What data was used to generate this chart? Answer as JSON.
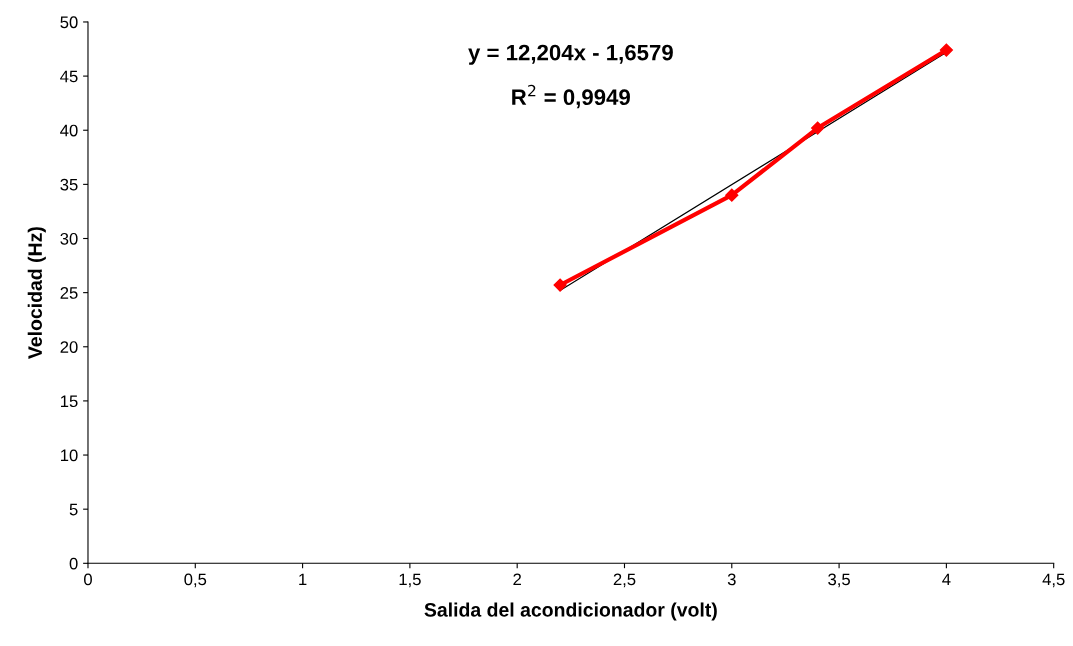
{
  "chart_data": {
    "type": "line",
    "xlabel": "Salida del acondicionador (volt)",
    "ylabel": "Velocidad (Hz)",
    "series": [
      {
        "color": "#ff0000",
        "x": [
          2.2,
          3,
          3.4,
          4
        ],
        "values": [
          25.7,
          34.0,
          40.2,
          47.4
        ],
        "marker": "diamond"
      },
      {
        "color": "#000000",
        "x": [
          2.2,
          4
        ],
        "values": [
          25.2,
          47.2
        ],
        "marker": "none"
      }
    ],
    "xlim": [
      0,
      4.5
    ],
    "ylim": [
      0,
      50
    ],
    "xticks": [
      0,
      {
        "value": 0.5,
        "label": "0,5"
      },
      1,
      {
        "value": 1.5,
        "label": "1,5"
      },
      2,
      {
        "value": 2.5,
        "label": "2,5"
      },
      3,
      {
        "value": 3.5,
        "label": "3,5"
      },
      4,
      {
        "value": 4.5,
        "label": "4,5"
      }
    ],
    "yticks": [
      0,
      5,
      10,
      15,
      20,
      25,
      30,
      35,
      40,
      45,
      50
    ],
    "annotations": [
      "y = 12,204x - 1,6579",
      "R$^{2}$ = 0,9949"
    ],
    "grid": false,
    "legend": false
  }
}
